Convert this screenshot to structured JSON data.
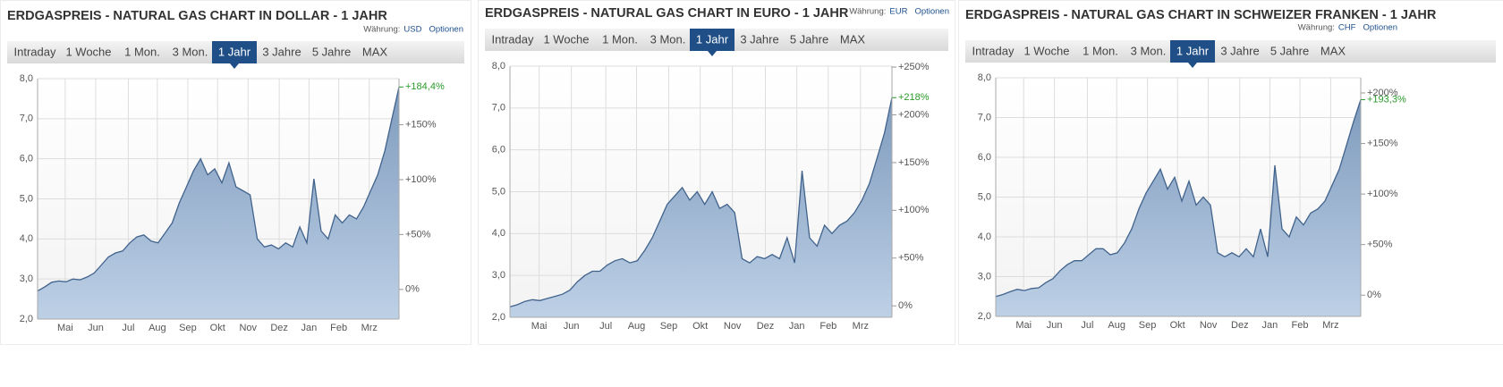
{
  "chart_data": [
    {
      "type": "area",
      "title": "ERDGASPREIS - NATURAL GAS CHART IN DOLLAR - 1 JAHR",
      "currency_label": "Währung:",
      "currency": "USD",
      "options": "Optionen",
      "tabs": [
        "Intraday",
        "1 Woche",
        "1 Mon.",
        "3 Mon.",
        "1 Jahr",
        "3 Jahre",
        "5 Jahre",
        "MAX"
      ],
      "active_tab": 4,
      "color": "#41638c",
      "values": [
        2.7,
        2.8,
        2.92,
        2.95,
        2.93,
        3.0,
        2.98,
        3.05,
        3.15,
        3.35,
        3.55,
        3.65,
        3.7,
        3.9,
        4.05,
        4.1,
        3.95,
        3.9,
        4.15,
        4.4,
        4.9,
        5.3,
        5.7,
        6.0,
        5.6,
        5.75,
        5.4,
        5.9,
        5.3,
        5.2,
        5.1,
        4.0,
        3.8,
        3.85,
        3.75,
        3.9,
        3.8,
        4.3,
        3.9,
        5.5,
        4.2,
        4.0,
        4.6,
        4.4,
        4.6,
        4.5,
        4.8,
        5.2,
        5.6,
        6.2,
        7.0,
        7.79
      ],
      "xlim": [
        0,
        51
      ],
      "xticks": [
        {
          "value": 3.9,
          "label": "Mai"
        },
        {
          "value": 8.2,
          "label": "Jun"
        },
        {
          "value": 12.8,
          "label": "Jul"
        },
        {
          "value": 16.9,
          "label": "Aug"
        },
        {
          "value": 21.2,
          "label": "Sep"
        },
        {
          "value": 25.4,
          "label": "Okt"
        },
        {
          "value": 29.7,
          "label": "Nov"
        },
        {
          "value": 34.1,
          "label": "Dez"
        },
        {
          "value": 38.3,
          "label": "Jan"
        },
        {
          "value": 42.5,
          "label": "Feb"
        },
        {
          "value": 46.8,
          "label": "Mrz"
        }
      ],
      "ylim": [
        2,
        8
      ],
      "yticks": [
        {
          "value": 2,
          "label": "2,0"
        },
        {
          "value": 3,
          "label": "3,0"
        },
        {
          "value": 4,
          "label": "4,0"
        },
        {
          "value": 5,
          "label": "5,0"
        },
        {
          "value": 6,
          "label": "6,0"
        },
        {
          "value": 7,
          "label": "7,0"
        },
        {
          "value": 8,
          "label": "8,0"
        }
      ],
      "y2lim": [
        -27,
        192
      ],
      "y2ticks": [
        {
          "value": 0,
          "label": "0%"
        },
        {
          "value": 50,
          "label": "+50%"
        },
        {
          "value": 100,
          "label": "+100%"
        },
        {
          "value": 150,
          "label": "+150%"
        }
      ],
      "annotation": {
        "value": 184.4,
        "label": "+184,4%",
        "color": "#2a9a2a"
      },
      "grid": true
    },
    {
      "type": "area",
      "title": "ERDGASPREIS - NATURAL GAS CHART IN EURO - 1 JAHR",
      "currency_label": "Währung:",
      "currency": "EUR",
      "options": "Optionen",
      "tabs": [
        "Intraday",
        "1 Woche",
        "1 Mon.",
        "3 Mon.",
        "1 Jahr",
        "3 Jahre",
        "5 Jahre",
        "MAX"
      ],
      "active_tab": 4,
      "color": "#41638c",
      "values": [
        2.25,
        2.3,
        2.38,
        2.42,
        2.4,
        2.45,
        2.5,
        2.55,
        2.65,
        2.85,
        3.0,
        3.1,
        3.1,
        3.25,
        3.35,
        3.4,
        3.3,
        3.35,
        3.6,
        3.9,
        4.3,
        4.7,
        4.9,
        5.1,
        4.8,
        5.0,
        4.7,
        5.0,
        4.6,
        4.7,
        4.5,
        3.4,
        3.3,
        3.45,
        3.4,
        3.5,
        3.4,
        3.9,
        3.3,
        5.5,
        3.9,
        3.7,
        4.2,
        4.0,
        4.2,
        4.3,
        4.5,
        4.8,
        5.2,
        5.8,
        6.4,
        7.25
      ],
      "xlim": [
        0,
        51
      ],
      "xticks": [
        {
          "value": 3.9,
          "label": "Mai"
        },
        {
          "value": 8.2,
          "label": "Jun"
        },
        {
          "value": 12.8,
          "label": "Jul"
        },
        {
          "value": 16.9,
          "label": "Aug"
        },
        {
          "value": 21.2,
          "label": "Sep"
        },
        {
          "value": 25.4,
          "label": "Okt"
        },
        {
          "value": 29.7,
          "label": "Nov"
        },
        {
          "value": 34.1,
          "label": "Dez"
        },
        {
          "value": 38.3,
          "label": "Jan"
        },
        {
          "value": 42.5,
          "label": "Feb"
        },
        {
          "value": 46.8,
          "label": "Mrz"
        }
      ],
      "ylim": [
        2,
        8
      ],
      "yticks": [
        {
          "value": 2,
          "label": "2,0"
        },
        {
          "value": 3,
          "label": "3,0"
        },
        {
          "value": 4,
          "label": "4,0"
        },
        {
          "value": 5,
          "label": "5,0"
        },
        {
          "value": 6,
          "label": "6,0"
        },
        {
          "value": 7,
          "label": "7,0"
        },
        {
          "value": 8,
          "label": "8,0"
        }
      ],
      "y2lim": [
        -12,
        251
      ],
      "y2ticks": [
        {
          "value": 0,
          "label": "0%"
        },
        {
          "value": 50,
          "label": "+50%"
        },
        {
          "value": 100,
          "label": "+100%"
        },
        {
          "value": 150,
          "label": "+150%"
        },
        {
          "value": 200,
          "label": "+200%"
        },
        {
          "value": 250,
          "label": "+250%"
        }
      ],
      "annotation": {
        "value": 218,
        "label": "+218%",
        "color": "#2a9a2a"
      },
      "grid": true
    },
    {
      "type": "area",
      "title": "ERDGASPREIS - NATURAL GAS CHART IN SCHWEIZER FRANKEN - 1 JAHR",
      "currency_label": "Währung:",
      "currency": "CHF",
      "options": "Optionen",
      "tabs": [
        "Intraday",
        "1 Woche",
        "1 Mon.",
        "3 Mon.",
        "1 Jahr",
        "3 Jahre",
        "5 Jahre",
        "MAX"
      ],
      "active_tab": 4,
      "color": "#41638c",
      "values": [
        2.5,
        2.55,
        2.62,
        2.68,
        2.65,
        2.7,
        2.72,
        2.85,
        2.95,
        3.15,
        3.3,
        3.4,
        3.4,
        3.55,
        3.7,
        3.7,
        3.55,
        3.6,
        3.85,
        4.2,
        4.7,
        5.1,
        5.4,
        5.7,
        5.2,
        5.5,
        4.9,
        5.4,
        4.8,
        5.0,
        4.8,
        3.6,
        3.5,
        3.6,
        3.5,
        3.7,
        3.5,
        4.2,
        3.5,
        5.8,
        4.2,
        4.0,
        4.5,
        4.3,
        4.6,
        4.7,
        4.9,
        5.3,
        5.7,
        6.3,
        6.9,
        7.45
      ],
      "xlim": [
        0,
        51
      ],
      "xticks": [
        {
          "value": 3.9,
          "label": "Mai"
        },
        {
          "value": 8.2,
          "label": "Jun"
        },
        {
          "value": 12.8,
          "label": "Jul"
        },
        {
          "value": 16.9,
          "label": "Aug"
        },
        {
          "value": 21.2,
          "label": "Sep"
        },
        {
          "value": 25.4,
          "label": "Okt"
        },
        {
          "value": 29.7,
          "label": "Nov"
        },
        {
          "value": 34.1,
          "label": "Dez"
        },
        {
          "value": 38.3,
          "label": "Jan"
        },
        {
          "value": 42.5,
          "label": "Feb"
        },
        {
          "value": 46.8,
          "label": "Mrz"
        }
      ],
      "ylim": [
        2,
        8
      ],
      "yticks": [
        {
          "value": 2,
          "label": "2,0"
        },
        {
          "value": 3,
          "label": "3,0"
        },
        {
          "value": 4,
          "label": "4,0"
        },
        {
          "value": 5,
          "label": "5,0"
        },
        {
          "value": 6,
          "label": "6,0"
        },
        {
          "value": 7,
          "label": "7,0"
        },
        {
          "value": 8,
          "label": "8,0"
        }
      ],
      "y2lim": [
        -21,
        215
      ],
      "y2ticks": [
        {
          "value": 0,
          "label": "0%"
        },
        {
          "value": 50,
          "label": "+50%"
        },
        {
          "value": 100,
          "label": "+100%"
        },
        {
          "value": 150,
          "label": "+150%"
        },
        {
          "value": 200,
          "label": "+200%"
        }
      ],
      "annotation": {
        "value": 193.3,
        "label": "+193,3%",
        "color": "#2a9a2a"
      },
      "grid": true
    }
  ]
}
